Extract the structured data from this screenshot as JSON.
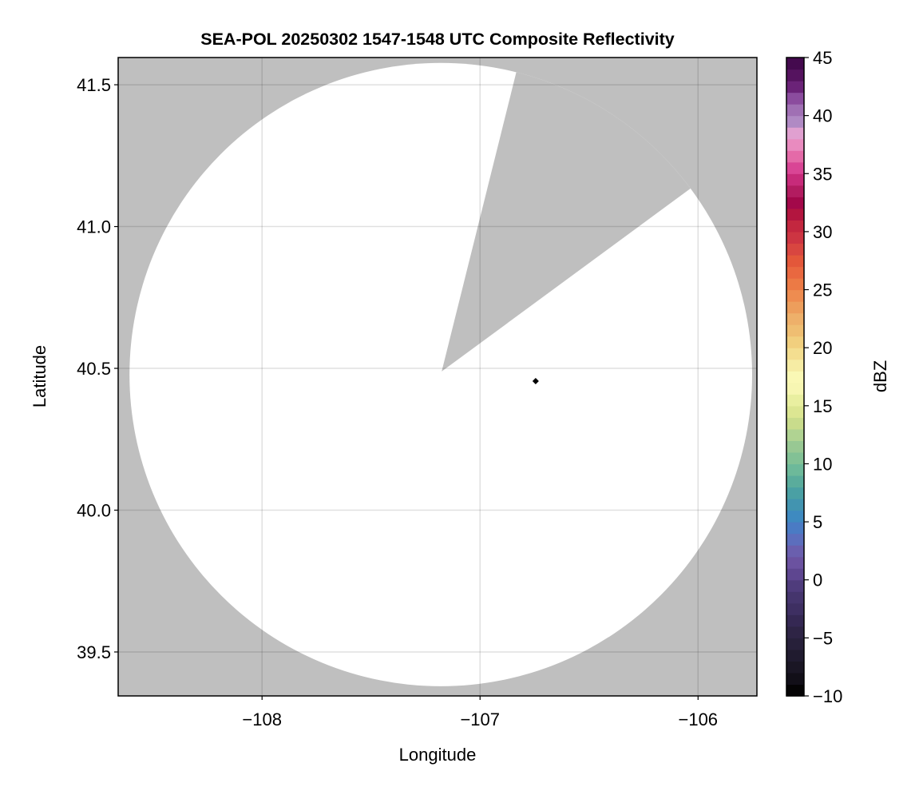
{
  "chart_data": {
    "type": "heatmap",
    "title": "SEA-POL 20250302 1547-1548 UTC Composite Reflectivity",
    "xlabel": "Longitude",
    "ylabel": "Latitude",
    "xlim": [
      -108.66,
      -105.73
    ],
    "ylim": [
      39.345,
      41.596
    ],
    "xticks": [
      -108,
      -107,
      -106
    ],
    "xtick_labels": [
      "−108",
      "−107",
      "−106"
    ],
    "yticks": [
      39.5,
      40.0,
      40.5,
      41.0,
      41.5
    ],
    "ytick_labels": [
      "39.5",
      "40.0",
      "40.5",
      "41.0",
      "41.5"
    ],
    "grid": true,
    "background_color": "#bfbfbf",
    "coverage_color": "#ffffff",
    "radar_center": {
      "lon": -107.18,
      "lat": 40.478
    },
    "range_radius_deg": {
      "lon": 1.428,
      "lat": 1.099
    },
    "blocked_sector": {
      "apex": {
        "lon": -107.176,
        "lat": 40.489
      },
      "edge1": {
        "lon": -106.84,
        "lat": 41.525
      },
      "edge2": {
        "lon": -106.06,
        "lat": 41.12
      }
    },
    "marker": {
      "lon": -106.745,
      "lat": 40.455,
      "shape": "diamond",
      "color": "#000000"
    },
    "colorbar": {
      "label": "dBZ",
      "range": [
        -10,
        45
      ],
      "ticks": [
        -10,
        -5,
        0,
        5,
        10,
        15,
        20,
        25,
        30,
        35,
        40,
        45
      ],
      "tick_labels": [
        "−10",
        "−5",
        "0",
        "5",
        "10",
        "15",
        "20",
        "25",
        "30",
        "35",
        "40",
        "45"
      ],
      "colors_low_to_high": [
        "#050405",
        "#120f18",
        "#1a1624",
        "#201b2f",
        "#27203a",
        "#2e2445",
        "#352853",
        "#3e2f62",
        "#45356d",
        "#4f3c7c",
        "#5e4690",
        "#6b52a0",
        "#6a5fae",
        "#5c6ebd",
        "#4a7bc4",
        "#3e8ac0",
        "#4294b0",
        "#4aa0a4",
        "#5aac9c",
        "#6db99a",
        "#82c195",
        "#98c893",
        "#b0d392",
        "#c9dc8c",
        "#dce692",
        "#e9efa0",
        "#f7f6b2",
        "#faf8b5",
        "#f6eca4",
        "#f4de90",
        "#f1cf7e",
        "#efbe72",
        "#eeb06a",
        "#ed9e5c",
        "#ee8c50",
        "#ec7a45",
        "#e96840",
        "#e3573a",
        "#d84640",
        "#cd3542",
        "#c3273f",
        "#b3153f",
        "#a3084a",
        "#b21c60",
        "#c72b7a",
        "#d94595",
        "#e46aa8",
        "#e98bbf",
        "#e0a0d0",
        "#b08ac4",
        "#a070b4",
        "#8b4c9e",
        "#6b2378",
        "#55135f",
        "#440a4e"
      ]
    }
  }
}
